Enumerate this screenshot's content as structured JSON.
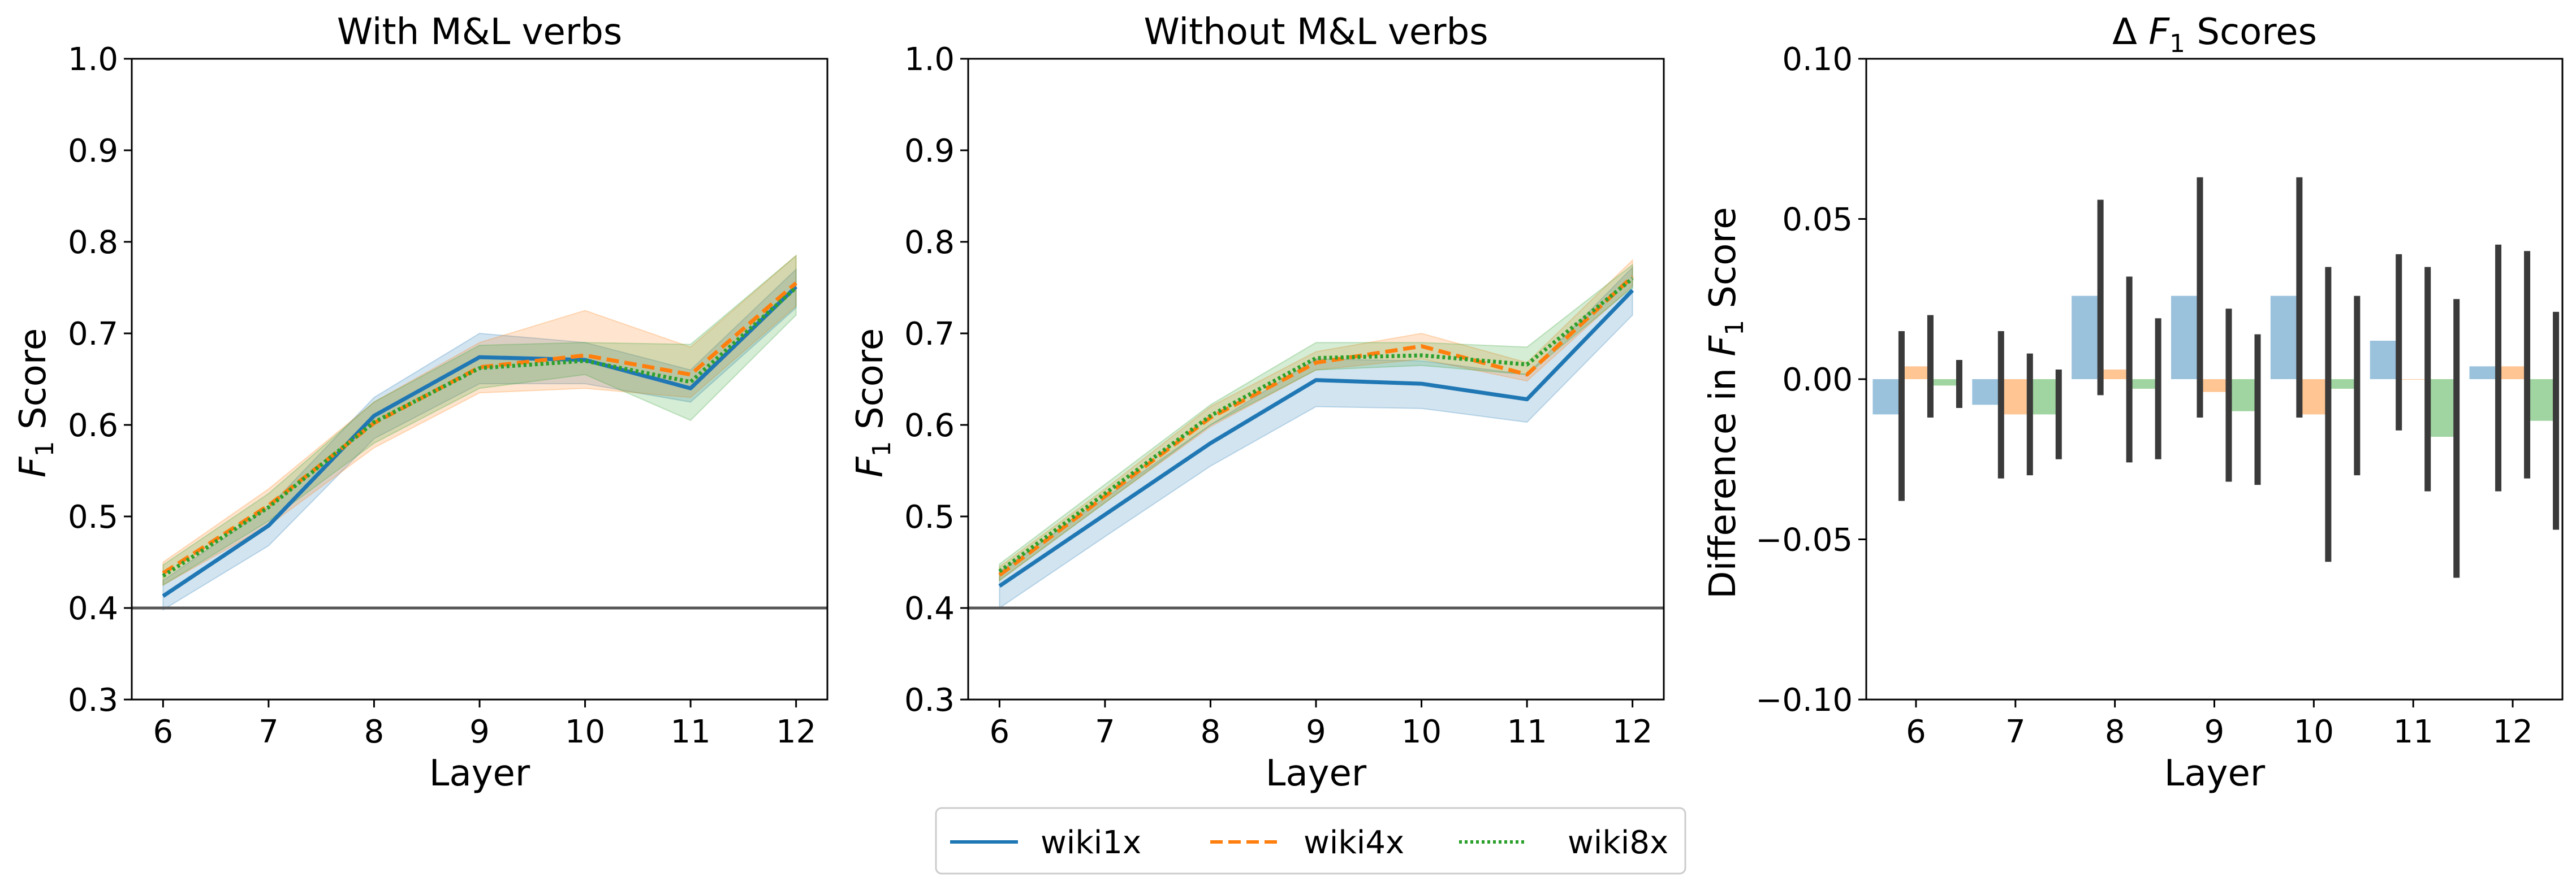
{
  "colors": {
    "wiki1x": "#1f77b4",
    "wiki4x": "#ff7f0e",
    "wiki8x": "#2ca02c",
    "errorbar": "#3a3a3a",
    "baseline": "#555555"
  },
  "legend": {
    "placement": "bottom-center",
    "entries": [
      "wiki1x",
      "wiki4x",
      "wiki8x"
    ]
  },
  "chart_data": [
    {
      "type": "line",
      "title": "With M&L verbs",
      "xlabel": "Layer",
      "ylabel_prefix": "F",
      "ylabel_sub": "1",
      "ylabel_suffix": " Score",
      "x": [
        6,
        7,
        8,
        9,
        10,
        11,
        12
      ],
      "xticks": [
        "6",
        "7",
        "8",
        "9",
        "10",
        "11",
        "12"
      ],
      "ylim": [
        0.3,
        1.0
      ],
      "yticks": [
        "0.3",
        "0.4",
        "0.5",
        "0.6",
        "0.7",
        "0.8",
        "0.9",
        "1.0"
      ],
      "baseline": 0.4,
      "series": [
        {
          "name": "wiki1x",
          "style": "solid",
          "values": [
            0.413,
            0.49,
            0.61,
            0.674,
            0.671,
            0.64,
            0.751
          ],
          "lower": [
            0.398,
            0.468,
            0.585,
            0.645,
            0.645,
            0.625,
            0.728
          ],
          "upper": [
            0.43,
            0.51,
            0.63,
            0.7,
            0.69,
            0.66,
            0.77
          ]
        },
        {
          "name": "wiki4x",
          "style": "dashed",
          "values": [
            0.438,
            0.512,
            0.602,
            0.663,
            0.676,
            0.655,
            0.755
          ],
          "lower": [
            0.425,
            0.49,
            0.575,
            0.635,
            0.64,
            0.63,
            0.73
          ],
          "upper": [
            0.45,
            0.53,
            0.625,
            0.69,
            0.725,
            0.685,
            0.785
          ]
        },
        {
          "name": "wiki8x",
          "style": "dotted",
          "values": [
            0.435,
            0.51,
            0.603,
            0.662,
            0.67,
            0.647,
            0.75
          ],
          "lower": [
            0.425,
            0.495,
            0.58,
            0.64,
            0.655,
            0.605,
            0.72
          ],
          "upper": [
            0.447,
            0.525,
            0.625,
            0.687,
            0.69,
            0.688,
            0.785
          ]
        }
      ]
    },
    {
      "type": "line",
      "title": "Without M&L verbs",
      "xlabel": "Layer",
      "ylabel_prefix": "F",
      "ylabel_sub": "1",
      "ylabel_suffix": " Score",
      "x": [
        6,
        7,
        8,
        9,
        10,
        11,
        12
      ],
      "xticks": [
        "6",
        "7",
        "8",
        "9",
        "10",
        "11",
        "12"
      ],
      "ylim": [
        0.3,
        1.0
      ],
      "yticks": [
        "0.3",
        "0.4",
        "0.5",
        "0.6",
        "0.7",
        "0.8",
        "0.9",
        "1.0"
      ],
      "baseline": 0.4,
      "series": [
        {
          "name": "wiki1x",
          "style": "solid",
          "values": [
            0.424,
            0.502,
            0.58,
            0.649,
            0.645,
            0.628,
            0.747
          ],
          "lower": [
            0.4,
            0.478,
            0.555,
            0.62,
            0.618,
            0.603,
            0.72
          ],
          "upper": [
            0.44,
            0.52,
            0.6,
            0.672,
            0.67,
            0.655,
            0.772
          ]
        },
        {
          "name": "wiki4x",
          "style": "dashed",
          "values": [
            0.436,
            0.522,
            0.608,
            0.668,
            0.686,
            0.655,
            0.762
          ],
          "lower": [
            0.43,
            0.515,
            0.598,
            0.66,
            0.672,
            0.648,
            0.752
          ],
          "upper": [
            0.445,
            0.53,
            0.62,
            0.68,
            0.7,
            0.668,
            0.78
          ]
        },
        {
          "name": "wiki8x",
          "style": "dotted",
          "values": [
            0.44,
            0.525,
            0.61,
            0.673,
            0.676,
            0.666,
            0.76
          ],
          "lower": [
            0.43,
            0.515,
            0.6,
            0.66,
            0.665,
            0.655,
            0.75
          ],
          "upper": [
            0.448,
            0.535,
            0.622,
            0.69,
            0.69,
            0.685,
            0.775
          ]
        }
      ]
    },
    {
      "type": "bar",
      "title_prefix": "Δ ",
      "title_var": "F",
      "title_sub": "1",
      "title_suffix": " Scores",
      "xlabel": "Layer",
      "ylabel_prefix": "Difference in ",
      "ylabel_var": "F",
      "ylabel_sub": "1",
      "ylabel_suffix": " Score",
      "categories": [
        "6",
        "7",
        "8",
        "9",
        "10",
        "11",
        "12"
      ],
      "ylim": [
        -0.1,
        0.1
      ],
      "yticks": [
        "0.10",
        "0.05",
        "0.00",
        "−0.05",
        "−0.10"
      ],
      "ytick_values": [
        0.1,
        0.05,
        0.0,
        -0.05,
        -0.1
      ],
      "series": [
        {
          "name": "wiki1x",
          "values": [
            -0.011,
            -0.008,
            0.026,
            0.026,
            0.026,
            0.012,
            0.004
          ],
          "err_low": [
            -0.038,
            -0.031,
            -0.005,
            -0.012,
            -0.012,
            -0.016,
            -0.035
          ],
          "err_high": [
            0.015,
            0.015,
            0.056,
            0.063,
            0.063,
            0.039,
            0.042
          ]
        },
        {
          "name": "wiki4x",
          "values": [
            0.004,
            -0.011,
            0.003,
            -0.004,
            -0.011,
            0.0,
            0.004
          ],
          "err_low": [
            -0.012,
            -0.03,
            -0.026,
            -0.032,
            -0.057,
            -0.035,
            -0.031
          ],
          "err_high": [
            0.02,
            0.008,
            0.032,
            0.022,
            0.035,
            0.035,
            0.04
          ]
        },
        {
          "name": "wiki8x",
          "values": [
            -0.002,
            -0.011,
            -0.003,
            -0.01,
            -0.003,
            -0.018,
            -0.013
          ],
          "err_low": [
            -0.009,
            -0.025,
            -0.025,
            -0.033,
            -0.03,
            -0.062,
            -0.047
          ],
          "err_high": [
            0.006,
            0.003,
            0.019,
            0.014,
            0.026,
            0.025,
            0.021
          ]
        }
      ]
    }
  ]
}
